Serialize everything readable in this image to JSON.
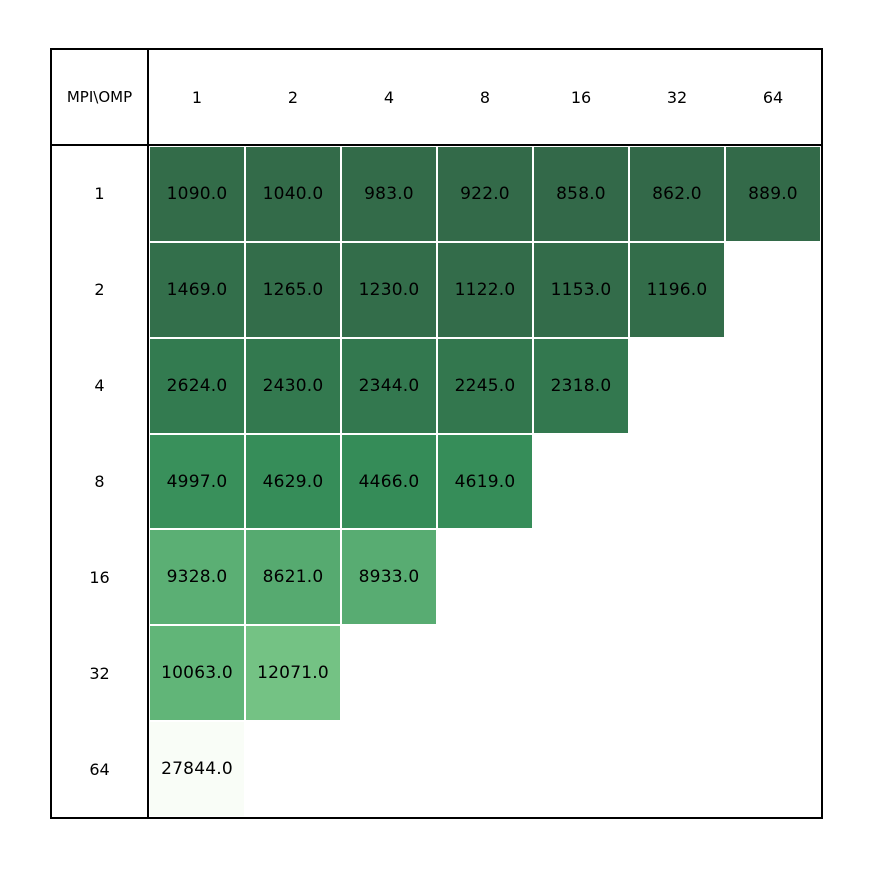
{
  "table": {
    "corner_label": "MPI\\OMP",
    "col_headers": [
      "1",
      "2",
      "4",
      "8",
      "16",
      "32",
      "64"
    ],
    "rows": [
      {
        "label": "1",
        "cells": [
          {
            "value": "1090.0",
            "color": "#336C49"
          },
          {
            "value": "1040.0",
            "color": "#336B49"
          },
          {
            "value": "983.0",
            "color": "#336B49"
          },
          {
            "value": "922.0",
            "color": "#336A49"
          },
          {
            "value": "858.0",
            "color": "#336949"
          },
          {
            "value": "862.0",
            "color": "#336949"
          },
          {
            "value": "889.0",
            "color": "#336A49"
          }
        ]
      },
      {
        "label": "2",
        "cells": [
          {
            "value": "1469.0",
            "color": "#336F4B"
          },
          {
            "value": "1265.0",
            "color": "#336D4A"
          },
          {
            "value": "1230.0",
            "color": "#336D4A"
          },
          {
            "value": "1122.0",
            "color": "#336C4A"
          },
          {
            "value": "1153.0",
            "color": "#336C4A"
          },
          {
            "value": "1196.0",
            "color": "#336D4A"
          }
        ]
      },
      {
        "label": "4",
        "cells": [
          {
            "value": "2624.0",
            "color": "#337B50"
          },
          {
            "value": "2430.0",
            "color": "#33794F"
          },
          {
            "value": "2344.0",
            "color": "#33784F"
          },
          {
            "value": "2245.0",
            "color": "#33774E"
          },
          {
            "value": "2318.0",
            "color": "#33784F"
          }
        ]
      },
      {
        "label": "8",
        "cells": [
          {
            "value": "4997.0",
            "color": "#39905B"
          },
          {
            "value": "4629.0",
            "color": "#368D59"
          },
          {
            "value": "4466.0",
            "color": "#358C58"
          },
          {
            "value": "4619.0",
            "color": "#368D59"
          }
        ]
      },
      {
        "label": "16",
        "cells": [
          {
            "value": "9328.0",
            "color": "#5BAF74"
          },
          {
            "value": "8621.0",
            "color": "#56AA70"
          },
          {
            "value": "8933.0",
            "color": "#58AC72"
          }
        ]
      },
      {
        "label": "32",
        "cells": [
          {
            "value": "10063.0",
            "color": "#61B578"
          },
          {
            "value": "12071.0",
            "color": "#74C284"
          }
        ]
      },
      {
        "label": "64",
        "cells": [
          {
            "value": "27844.0",
            "color": "#F9FDF7"
          }
        ]
      }
    ]
  },
  "chart_data": {
    "type": "heatmap",
    "title": "",
    "corner_header": "MPI\\OMP",
    "x_label": "OMP",
    "y_label": "MPI",
    "x": [
      1,
      2,
      4,
      8,
      16,
      32,
      64
    ],
    "y": [
      1,
      2,
      4,
      8,
      16,
      32,
      64
    ],
    "values": [
      [
        1090.0,
        1040.0,
        983.0,
        922.0,
        858.0,
        862.0,
        889.0
      ],
      [
        1469.0,
        1265.0,
        1230.0,
        1122.0,
        1153.0,
        1196.0,
        null
      ],
      [
        2624.0,
        2430.0,
        2344.0,
        2245.0,
        2318.0,
        null,
        null
      ],
      [
        4997.0,
        4629.0,
        4466.0,
        4619.0,
        null,
        null,
        null
      ],
      [
        9328.0,
        8621.0,
        8933.0,
        null,
        null,
        null,
        null
      ],
      [
        10063.0,
        12071.0,
        null,
        null,
        null,
        null,
        null
      ],
      [
        27844.0,
        null,
        null,
        null,
        null,
        null,
        null
      ]
    ],
    "colormap": "Greens reversed (low=dark green, high=near white)",
    "color_range": [
      858,
      27844
    ],
    "cell_gap_color": "#ffffff",
    "border_color": "#000000",
    "grid": "off",
    "legend": "none"
  }
}
